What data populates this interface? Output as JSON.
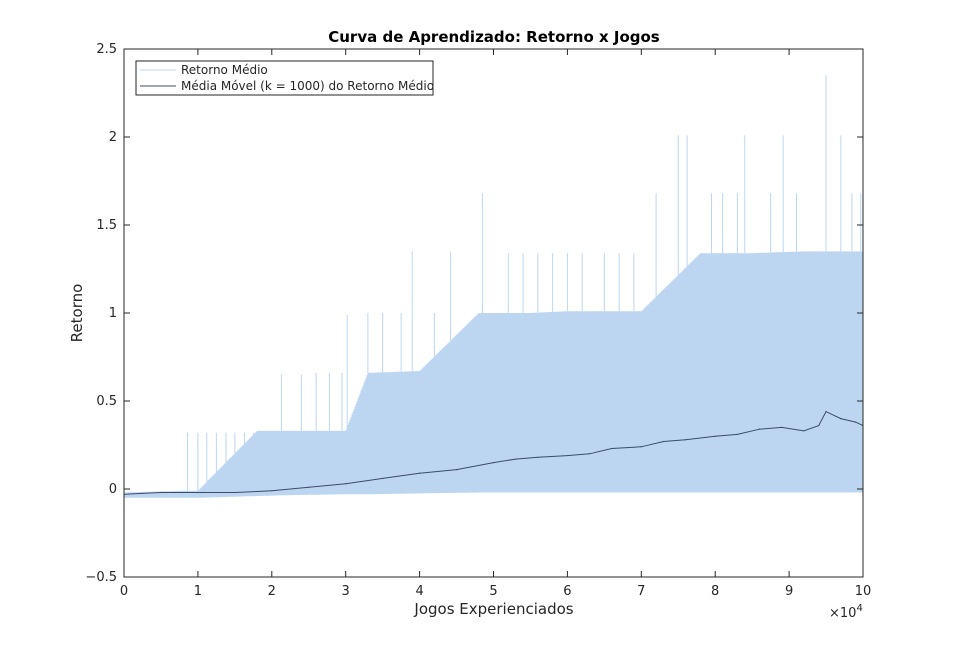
{
  "chart_data": {
    "type": "line",
    "title": "Curva de Aprendizado: Retorno x Jogos",
    "xlabel": "Jogos Experienciados",
    "ylabel": "Retorno",
    "x_exponent_label": "×10",
    "x_exponent_power": "4",
    "xlim": [
      0,
      10
    ],
    "ylim": [
      -0.5,
      2.5
    ],
    "xticks": [
      0,
      1,
      2,
      3,
      4,
      5,
      6,
      7,
      8,
      9,
      10
    ],
    "xtick_labels": [
      "0",
      "1",
      "2",
      "3",
      "4",
      "5",
      "6",
      "7",
      "8",
      "9",
      "10"
    ],
    "yticks": [
      -0.5,
      0,
      0.5,
      1,
      1.5,
      2,
      2.5
    ],
    "ytick_labels": [
      "−0.5",
      "0",
      "0.5",
      "1",
      "1.5",
      "2",
      "2.5"
    ],
    "grid": false,
    "legend_position": "top-left",
    "series": [
      {
        "name": "Retorno Médio",
        "color": "#bcd6f2",
        "style": "dense-oscillating",
        "band": {
          "x": [
            0,
            0.8,
            1.0,
            1.8,
            2.2,
            3.0,
            3.3,
            4.0,
            4.8,
            5.5,
            6.0,
            7.0,
            7.8,
            8.5,
            9.2,
            10.0
          ],
          "low": [
            -0.05,
            -0.05,
            -0.05,
            -0.04,
            -0.035,
            -0.03,
            -0.03,
            -0.025,
            -0.02,
            -0.02,
            -0.02,
            -0.02,
            -0.02,
            -0.02,
            -0.02,
            -0.02
          ],
          "high": [
            -0.02,
            -0.01,
            -0.01,
            0.33,
            0.33,
            0.33,
            0.66,
            0.67,
            1.0,
            1.0,
            1.01,
            1.01,
            1.34,
            1.34,
            1.35,
            1.35
          ]
        },
        "spikes": [
          {
            "x": 0.86,
            "y": 0.32
          },
          {
            "x": 1.0,
            "y": 0.32
          },
          {
            "x": 1.12,
            "y": 0.32
          },
          {
            "x": 1.25,
            "y": 0.32
          },
          {
            "x": 1.38,
            "y": 0.32
          },
          {
            "x": 1.5,
            "y": 0.32
          },
          {
            "x": 1.63,
            "y": 0.32
          },
          {
            "x": 1.75,
            "y": 0.32
          },
          {
            "x": 2.13,
            "y": 0.65
          },
          {
            "x": 2.4,
            "y": 0.65
          },
          {
            "x": 2.6,
            "y": 0.66
          },
          {
            "x": 2.78,
            "y": 0.66
          },
          {
            "x": 2.95,
            "y": 0.66
          },
          {
            "x": 3.02,
            "y": 0.99
          },
          {
            "x": 3.3,
            "y": 1.0
          },
          {
            "x": 3.5,
            "y": 1.0
          },
          {
            "x": 3.75,
            "y": 1.0
          },
          {
            "x": 3.9,
            "y": 1.35
          },
          {
            "x": 4.2,
            "y": 1.0
          },
          {
            "x": 4.42,
            "y": 1.35
          },
          {
            "x": 4.85,
            "y": 1.68
          },
          {
            "x": 5.2,
            "y": 1.34
          },
          {
            "x": 5.4,
            "y": 1.34
          },
          {
            "x": 5.6,
            "y": 1.34
          },
          {
            "x": 5.8,
            "y": 1.34
          },
          {
            "x": 6.0,
            "y": 1.34
          },
          {
            "x": 6.2,
            "y": 1.34
          },
          {
            "x": 6.5,
            "y": 1.34
          },
          {
            "x": 6.7,
            "y": 1.34
          },
          {
            "x": 6.9,
            "y": 1.34
          },
          {
            "x": 7.2,
            "y": 1.68
          },
          {
            "x": 7.5,
            "y": 2.01
          },
          {
            "x": 7.62,
            "y": 2.01
          },
          {
            "x": 7.95,
            "y": 1.68
          },
          {
            "x": 8.1,
            "y": 1.68
          },
          {
            "x": 8.3,
            "y": 1.68
          },
          {
            "x": 8.4,
            "y": 2.01
          },
          {
            "x": 8.75,
            "y": 1.68
          },
          {
            "x": 8.92,
            "y": 2.01
          },
          {
            "x": 9.1,
            "y": 1.68
          },
          {
            "x": 9.5,
            "y": 2.35
          },
          {
            "x": 9.7,
            "y": 2.01
          },
          {
            "x": 9.85,
            "y": 1.68
          },
          {
            "x": 9.97,
            "y": 1.68
          }
        ]
      },
      {
        "name": "Média Móvel (k = 1000) do Retorno Médio",
        "color": "#3c4a66",
        "x": [
          0,
          0.5,
          1.0,
          1.5,
          2.0,
          2.5,
          3.0,
          3.5,
          4.0,
          4.5,
          5.0,
          5.3,
          5.6,
          6.0,
          6.3,
          6.6,
          7.0,
          7.3,
          7.6,
          8.0,
          8.3,
          8.6,
          8.9,
          9.2,
          9.4,
          9.5,
          9.7,
          9.9,
          10.0
        ],
        "values": [
          -0.03,
          -0.02,
          -0.02,
          -0.02,
          -0.01,
          0.01,
          0.03,
          0.06,
          0.09,
          0.11,
          0.15,
          0.17,
          0.18,
          0.19,
          0.2,
          0.23,
          0.24,
          0.27,
          0.28,
          0.3,
          0.31,
          0.34,
          0.35,
          0.33,
          0.36,
          0.44,
          0.4,
          0.38,
          0.36
        ]
      }
    ]
  }
}
